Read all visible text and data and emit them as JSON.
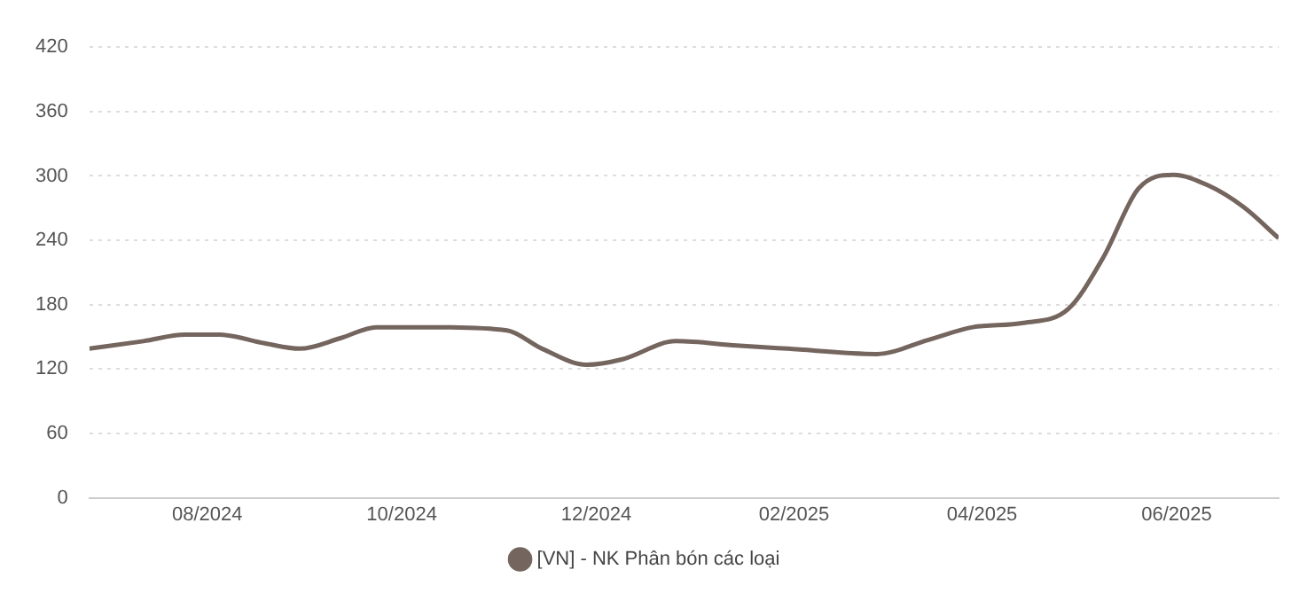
{
  "chart_data": {
    "type": "line",
    "x": [
      "2024-06-25",
      "2024-07-12",
      "2024-07-25",
      "2024-08-05",
      "2024-08-19",
      "2024-08-30",
      "2024-09-12",
      "2024-09-23",
      "2024-10-12",
      "2024-11-03",
      "2024-11-14",
      "2024-11-28",
      "2024-12-09",
      "2024-12-26",
      "2025-01-14",
      "2025-01-30",
      "2025-02-27",
      "2025-03-15",
      "2025-03-29",
      "2025-04-14",
      "2025-04-28",
      "2025-05-09",
      "2025-05-20",
      "2025-05-31",
      "2025-06-11",
      "2025-06-22",
      "2025-07-03"
    ],
    "series": [
      {
        "name": "[VN] - NK Phân bón các loại",
        "color": "#74655e",
        "values": [
          139,
          146,
          152,
          152,
          144,
          139,
          149,
          159,
          159,
          156,
          139,
          124,
          129,
          146,
          142,
          139,
          134,
          147,
          159,
          163,
          176,
          224,
          288,
          301,
          291,
          271,
          242
        ]
      }
    ],
    "xlim": [
      "2024-06-25",
      "2025-07-03"
    ],
    "xticks": [
      {
        "value": "2024-08-01",
        "label": "08/2024"
      },
      {
        "value": "2024-10-01",
        "label": "10/2024"
      },
      {
        "value": "2024-12-01",
        "label": "12/2024"
      },
      {
        "value": "2025-02-01",
        "label": "02/2025"
      },
      {
        "value": "2025-04-01",
        "label": "04/2025"
      },
      {
        "value": "2025-06-01",
        "label": "06/2025"
      }
    ],
    "ylim": [
      0,
      420
    ],
    "yticks": [
      0,
      60,
      120,
      180,
      240,
      300,
      360,
      420
    ],
    "grid": "y",
    "legend": "bottom"
  }
}
